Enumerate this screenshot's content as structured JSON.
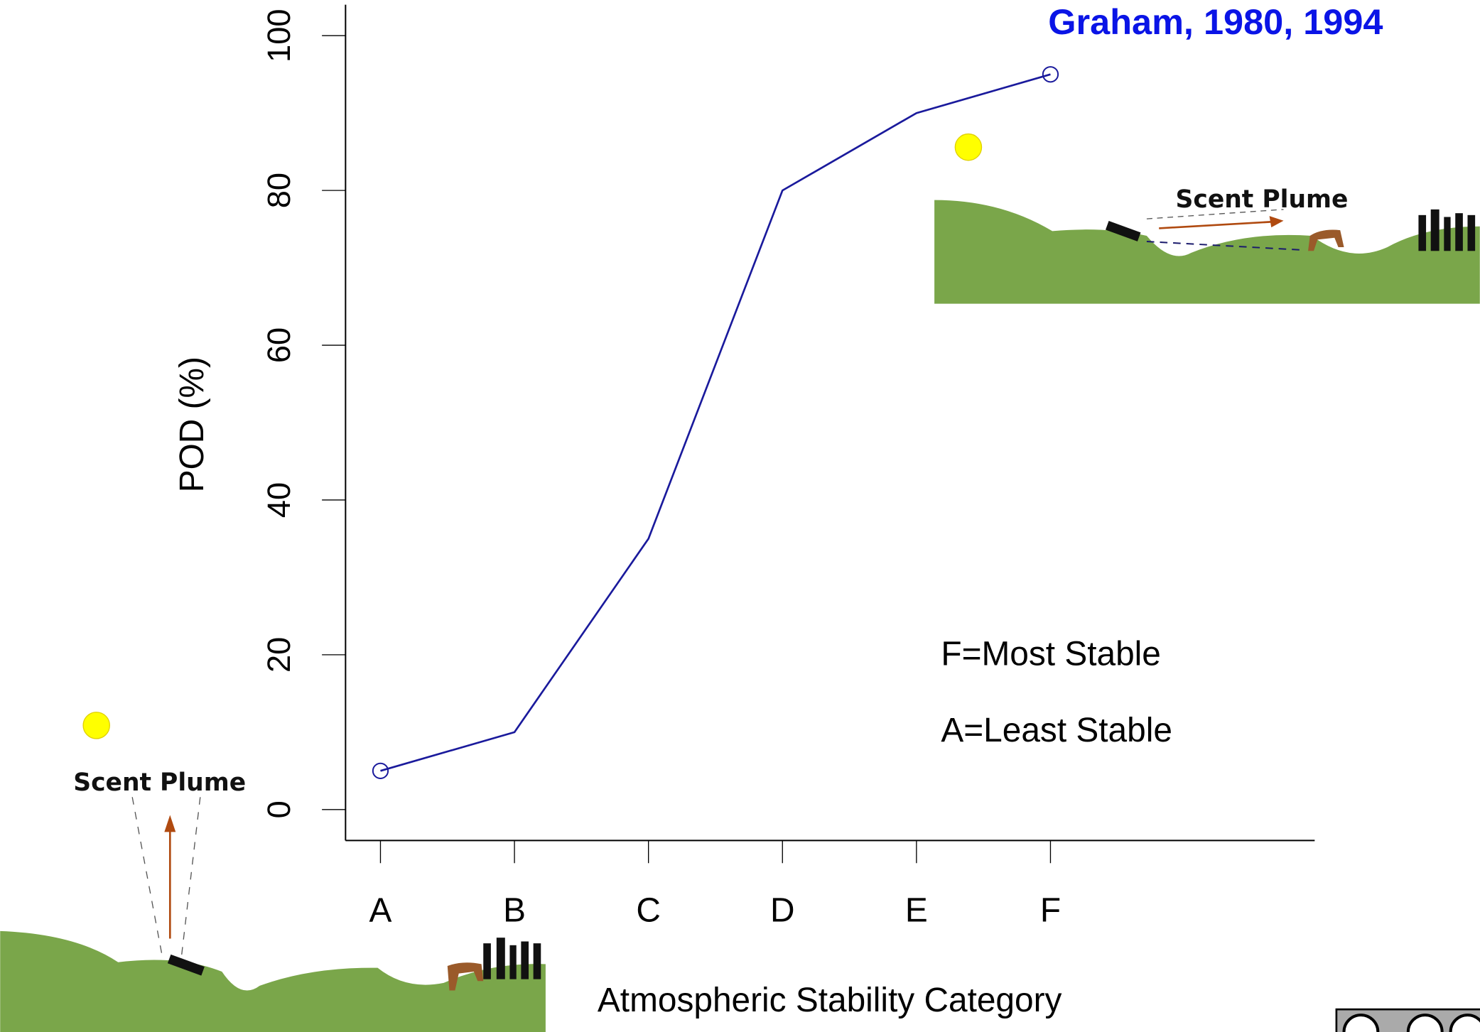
{
  "chart_data": {
    "type": "line",
    "annotation_title": "Graham, 1980, 1994",
    "x_label": "Atmospheric Stability Category",
    "y_label": "POD (%)",
    "categories": [
      "A",
      "B",
      "C",
      "D",
      "E",
      "F"
    ],
    "series": [
      {
        "name": "POD",
        "color": "#1a1a9c",
        "values": [
          5,
          10,
          35,
          80,
          90,
          95
        ]
      }
    ],
    "ylim": [
      -4,
      104
    ],
    "yticks": [
      0,
      20,
      40,
      60,
      80,
      100
    ],
    "grid": false,
    "notes": [
      "F=Most Stable",
      "A=Least Stable"
    ],
    "illustration_labels": [
      "Scent Plume",
      "Scent Plume"
    ]
  }
}
